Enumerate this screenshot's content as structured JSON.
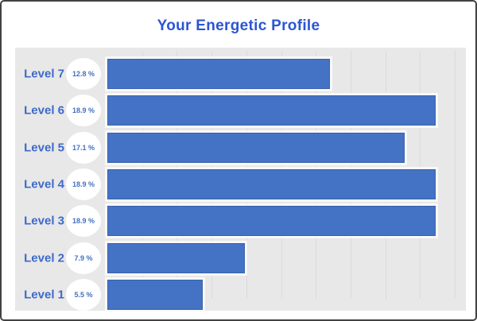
{
  "card": {
    "title": "Your Energetic Profile"
  },
  "chart_data": {
    "type": "bar",
    "orientation": "horizontal",
    "title": "Your Energetic Profile",
    "categories": [
      "Level 7",
      "Level 6",
      "Level 5",
      "Level 4",
      "Level 3",
      "Level 2",
      "Level 1"
    ],
    "values": [
      12.8,
      18.9,
      17.1,
      18.9,
      18.9,
      7.9,
      5.5
    ],
    "value_labels": [
      "12.8 %",
      "18.9 %",
      "17.1 %",
      "18.9 %",
      "18.9 %",
      "7.9 %",
      "5.5 %"
    ],
    "xlabel": "",
    "ylabel": "",
    "xlim": [
      0,
      20
    ],
    "grid_step": 2,
    "grid": true,
    "legend": false,
    "colors": {
      "bar": "#4472c4",
      "bar_border": "#3a62ab",
      "panel_bg": "#e9e8e8",
      "gridline": "#dcdbdb",
      "title_text": "#2b55d4",
      "label_text": "#3c6ac9",
      "badge_bg": "#ffffff",
      "badge_text": "#4470c0",
      "frame_border": "#424242",
      "background": "#ffffff"
    }
  }
}
